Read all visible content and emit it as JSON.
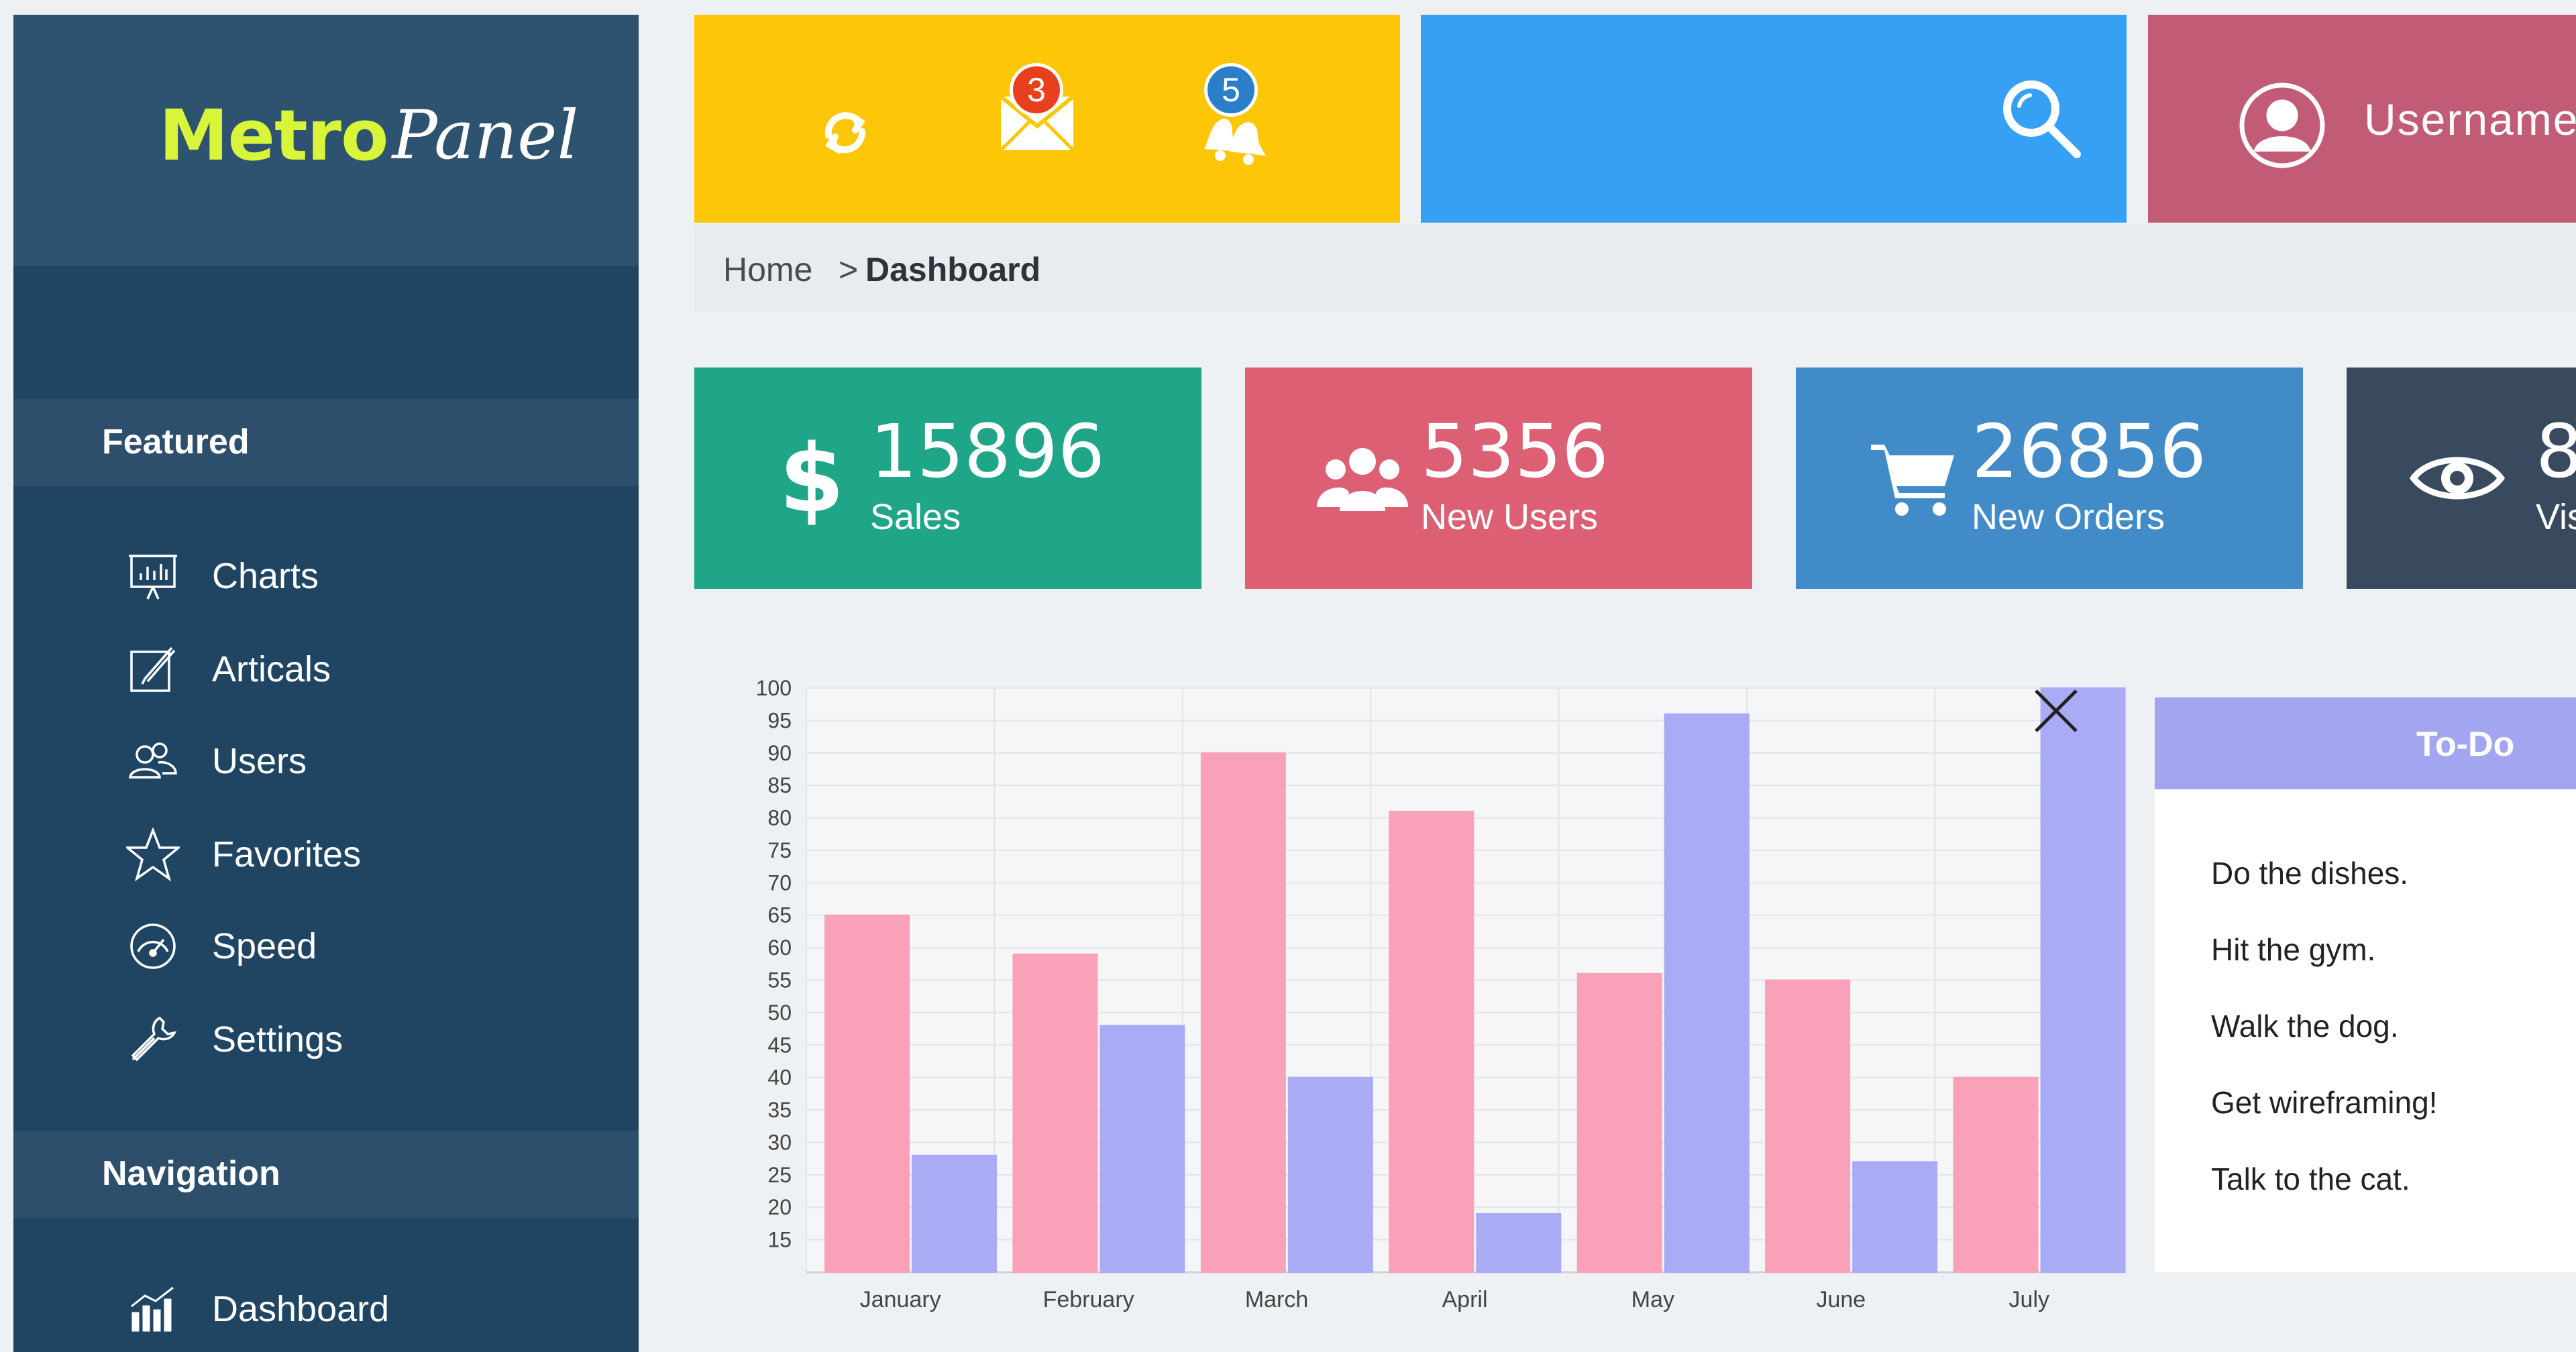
{
  "logo": {
    "brand_primary": "Metro",
    "brand_secondary": "Panel"
  },
  "sidebar": {
    "sections": [
      {
        "title": "Featured",
        "items": [
          {
            "label": "Charts",
            "icon": "presentation-chart-icon"
          },
          {
            "label": "Articals",
            "icon": "edit-icon"
          },
          {
            "label": "Users",
            "icon": "users-icon"
          },
          {
            "label": "Favorites",
            "icon": "star-icon"
          },
          {
            "label": "Speed",
            "icon": "speedometer-icon"
          },
          {
            "label": "Settings",
            "icon": "wrench-icon"
          }
        ]
      },
      {
        "title": "Navigation",
        "items": [
          {
            "label": "Dashboard",
            "icon": "bar-chart-icon"
          }
        ]
      }
    ]
  },
  "topbar": {
    "refresh_icon": "refresh-icon",
    "mail_badge": "3",
    "bell_badge": "5",
    "search_icon": "search-icon",
    "username": "Username"
  },
  "breadcrumb": {
    "home": "Home",
    "separator": ">",
    "current": "Dashboard"
  },
  "stats": [
    {
      "value": "15896",
      "label": "Sales",
      "icon": "dollar-icon",
      "color": "#1fa587"
    },
    {
      "value": "5356",
      "label": "New Users",
      "icon": "users-icon",
      "color": "#dd5f74"
    },
    {
      "value": "26856",
      "label": "New Orders",
      "icon": "cart-icon",
      "color": "#418bc9"
    },
    {
      "value": "8",
      "label": "Vis",
      "icon": "eye-icon",
      "color": "#3a4a5e"
    }
  ],
  "chart_data": {
    "type": "bar",
    "categories": [
      "January",
      "February",
      "March",
      "April",
      "May",
      "June",
      "July"
    ],
    "series": [
      {
        "values": [
          65,
          59,
          90,
          81,
          56,
          55,
          40
        ],
        "color": "#f9a1b9"
      },
      {
        "values": [
          28,
          48,
          40,
          19,
          96,
          27,
          100
        ],
        "color": "#a9acf5"
      }
    ],
    "y_ticks": [
      100,
      95,
      90,
      85,
      80,
      75,
      70,
      65,
      60,
      55,
      50,
      45,
      40,
      35,
      30,
      25,
      20,
      15
    ],
    "ylim": [
      10,
      100
    ],
    "grid": true
  },
  "todo": {
    "title": "To-Do",
    "items": [
      "Do the dishes.",
      "Hit the gym.",
      "Walk the dog.",
      "Get wireframing!",
      "Talk to the cat."
    ]
  }
}
